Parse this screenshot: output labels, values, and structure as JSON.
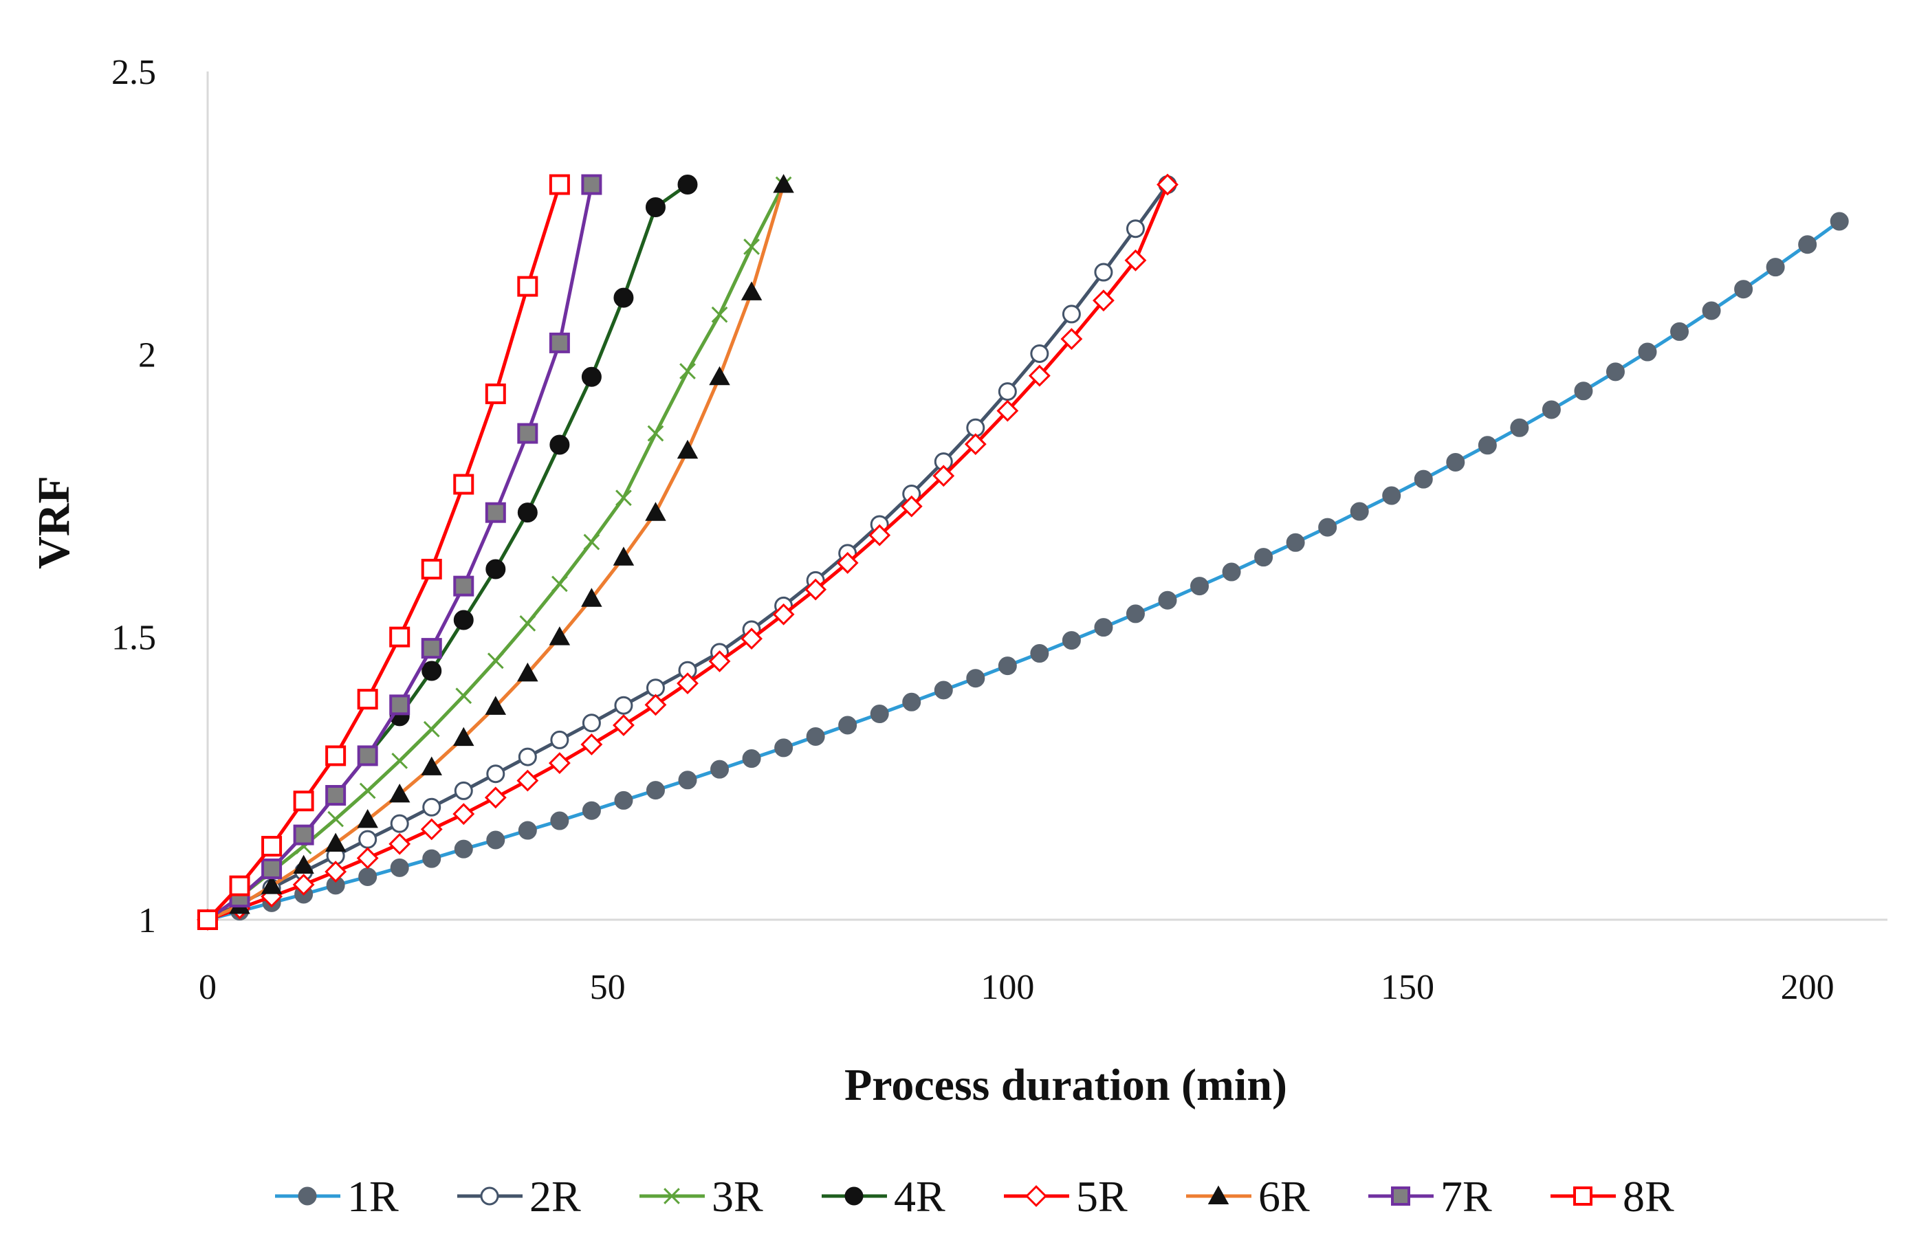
{
  "chart_data": {
    "type": "line",
    "title": "",
    "xlabel": "Process duration (min)",
    "ylabel": "VRF",
    "xlim": [
      0,
      210
    ],
    "ylim": [
      1,
      2.5
    ],
    "xticks": [
      0,
      50,
      100,
      150,
      200
    ],
    "yticks": [
      1,
      1.5,
      2,
      2.5
    ],
    "ytick_labels": [
      "1",
      "1.5",
      "2",
      "2.5"
    ],
    "grid": false,
    "legend": "bottom",
    "series": [
      {
        "name": "1R",
        "color": "#2E9BD6",
        "marker": "circle",
        "marker_fill": "#5A6470",
        "marker_stroke": "#5A6470",
        "x": [
          0,
          4,
          8,
          12,
          16,
          20,
          24,
          28,
          32,
          36,
          40,
          44,
          48,
          52,
          56,
          60,
          64,
          68,
          72,
          76,
          80,
          84,
          88,
          92,
          96,
          100,
          104,
          108,
          112,
          116,
          120,
          124,
          128,
          132,
          136,
          140,
          144,
          148,
          152,
          156,
          160,
          164,
          168,
          172,
          176,
          180,
          184,
          188,
          192,
          196,
          200,
          204
        ],
        "y": [
          1.0,
          1.015,
          1.03,
          1.045,
          1.061,
          1.076,
          1.092,
          1.108,
          1.125,
          1.141,
          1.158,
          1.175,
          1.193,
          1.211,
          1.229,
          1.247,
          1.266,
          1.285,
          1.304,
          1.324,
          1.344,
          1.364,
          1.385,
          1.406,
          1.427,
          1.449,
          1.471,
          1.494,
          1.517,
          1.541,
          1.565,
          1.59,
          1.615,
          1.641,
          1.667,
          1.694,
          1.722,
          1.75,
          1.779,
          1.809,
          1.839,
          1.87,
          1.902,
          1.935,
          1.969,
          2.004,
          2.04,
          2.077,
          2.115,
          2.154,
          2.194,
          2.235
        ]
      },
      {
        "name": "2R",
        "color": "#44546A",
        "marker": "circle",
        "marker_fill": "#ffffff",
        "marker_stroke": "#44546A",
        "x": [
          0,
          4,
          8,
          12,
          16,
          20,
          24,
          28,
          32,
          36,
          40,
          44,
          48,
          52,
          56,
          60,
          64,
          68,
          72,
          76,
          80,
          84,
          88,
          92,
          96,
          100,
          104,
          108,
          112,
          116,
          120
        ],
        "y": [
          1.0,
          1.028,
          1.056,
          1.085,
          1.113,
          1.142,
          1.17,
          1.199,
          1.228,
          1.258,
          1.288,
          1.318,
          1.348,
          1.379,
          1.41,
          1.441,
          1.473,
          1.513,
          1.555,
          1.6,
          1.648,
          1.699,
          1.753,
          1.81,
          1.87,
          1.934,
          2.001,
          2.071,
          2.145,
          2.222,
          2.3
        ]
      },
      {
        "name": "3R",
        "color": "#5EA33B",
        "marker": "x",
        "marker_fill": "#5EA33B",
        "marker_stroke": "#5EA33B",
        "x": [
          0,
          4,
          8,
          12,
          16,
          20,
          24,
          28,
          32,
          36,
          40,
          44,
          48,
          52,
          56,
          60,
          64,
          68,
          72
        ],
        "y": [
          1.0,
          1.04,
          1.085,
          1.13,
          1.178,
          1.228,
          1.281,
          1.337,
          1.396,
          1.458,
          1.524,
          1.594,
          1.668,
          1.746,
          1.86,
          1.97,
          2.07,
          2.19,
          2.3
        ]
      },
      {
        "name": "4R",
        "color": "#1E5E1E",
        "marker": "circle",
        "marker_fill": "#111111",
        "marker_stroke": "#111111",
        "x": [
          0,
          4,
          8,
          12,
          16,
          20,
          24,
          28,
          32,
          36,
          40,
          44,
          48,
          52,
          56,
          60
        ],
        "y": [
          1.0,
          1.04,
          1.09,
          1.15,
          1.22,
          1.29,
          1.36,
          1.44,
          1.53,
          1.62,
          1.72,
          1.84,
          1.96,
          2.1,
          2.26,
          2.3
        ]
      },
      {
        "name": "5R",
        "color": "#FF0000",
        "marker": "diamond",
        "marker_fill": "#ffffff",
        "marker_stroke": "#FF0000",
        "x": [
          0,
          4,
          8,
          12,
          16,
          20,
          24,
          28,
          32,
          36,
          40,
          44,
          48,
          52,
          56,
          60,
          64,
          68,
          72,
          76,
          80,
          84,
          88,
          92,
          96,
          100,
          104,
          108,
          112,
          116,
          120
        ],
        "y": [
          1.0,
          1.02,
          1.041,
          1.062,
          1.085,
          1.109,
          1.134,
          1.16,
          1.187,
          1.216,
          1.246,
          1.277,
          1.31,
          1.344,
          1.38,
          1.418,
          1.457,
          1.497,
          1.54,
          1.584,
          1.631,
          1.68,
          1.731,
          1.785,
          1.841,
          1.9,
          1.962,
          2.027,
          2.095,
          2.166,
          2.3
        ]
      },
      {
        "name": "6R",
        "color": "#ED7D31",
        "marker": "triangle",
        "marker_fill": "#111111",
        "marker_stroke": "#111111",
        "x": [
          0,
          4,
          8,
          12,
          16,
          20,
          24,
          28,
          32,
          36,
          40,
          44,
          48,
          52,
          56,
          60,
          64,
          68,
          72
        ],
        "y": [
          1.0,
          1.025,
          1.06,
          1.096,
          1.135,
          1.177,
          1.222,
          1.27,
          1.322,
          1.377,
          1.436,
          1.5,
          1.568,
          1.641,
          1.72,
          1.83,
          1.96,
          2.11,
          2.3
        ]
      },
      {
        "name": "7R",
        "color": "#7030A0",
        "marker": "square",
        "marker_fill": "#808080",
        "marker_stroke": "#7030A0",
        "x": [
          0,
          4,
          8,
          12,
          16,
          20,
          24,
          28,
          32,
          36,
          40,
          44,
          48
        ],
        "y": [
          1.0,
          1.04,
          1.09,
          1.15,
          1.22,
          1.29,
          1.38,
          1.48,
          1.59,
          1.72,
          1.86,
          2.02,
          2.3
        ]
      },
      {
        "name": "8R",
        "color": "#FF0000",
        "marker": "square",
        "marker_fill": "#ffffff",
        "marker_stroke": "#FF0000",
        "x": [
          0,
          4,
          8,
          12,
          16,
          20,
          24,
          28,
          32,
          36,
          40,
          44
        ],
        "y": [
          1.0,
          1.06,
          1.13,
          1.21,
          1.29,
          1.39,
          1.5,
          1.62,
          1.77,
          1.93,
          2.12,
          2.3
        ]
      }
    ]
  }
}
